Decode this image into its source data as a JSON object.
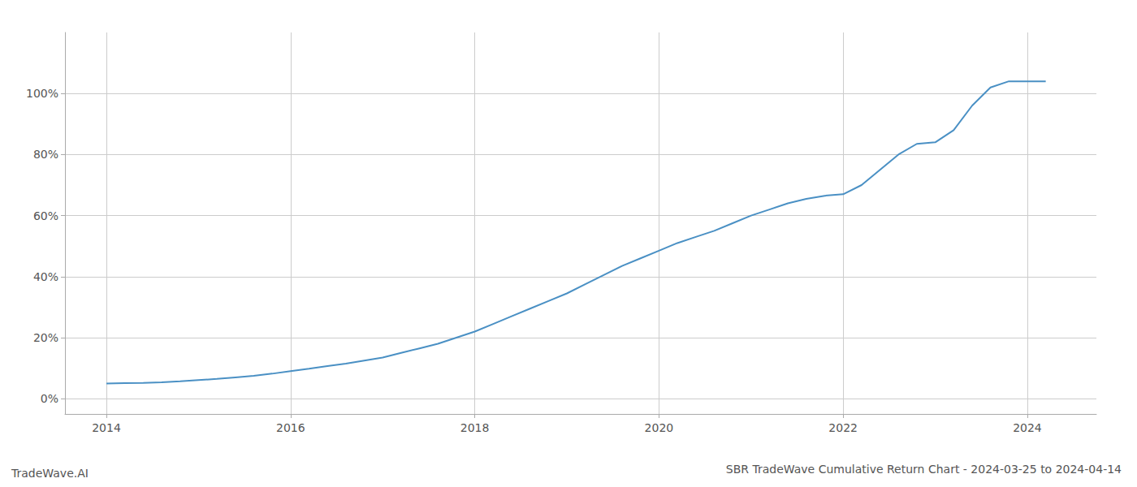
{
  "chart_data": {
    "type": "line",
    "title": "SBR TradeWave Cumulative Return Chart - 2024-03-25 to 2024-04-14",
    "annotations": [
      "TradeWave.AI"
    ],
    "color": "#4a90c4",
    "grid": true,
    "x": [
      2014.0,
      2014.2,
      2014.4,
      2014.6,
      2014.8,
      2015.0,
      2015.2,
      2015.4,
      2015.6,
      2015.8,
      2016.0,
      2016.2,
      2016.4,
      2016.6,
      2016.8,
      2017.0,
      2017.2,
      2017.4,
      2017.6,
      2017.8,
      2018.0,
      2018.2,
      2018.4,
      2018.6,
      2018.8,
      2019.0,
      2019.2,
      2019.4,
      2019.6,
      2019.8,
      2020.0,
      2020.2,
      2020.4,
      2020.6,
      2020.8,
      2021.0,
      2021.2,
      2021.4,
      2021.6,
      2021.8,
      2022.0,
      2022.2,
      2022.4,
      2022.6,
      2022.8,
      2023.0,
      2023.2,
      2023.4,
      2023.6,
      2023.8,
      2024.0,
      2024.2
    ],
    "values": [
      5.0,
      5.1,
      5.2,
      5.4,
      5.7,
      6.1,
      6.5,
      7.0,
      7.5,
      8.2,
      9.0,
      9.8,
      10.7,
      11.5,
      12.5,
      13.5,
      15.0,
      16.5,
      18.0,
      20.0,
      22.0,
      24.5,
      27.0,
      29.5,
      32.0,
      34.5,
      37.5,
      40.5,
      43.5,
      46.0,
      48.5,
      51.0,
      53.0,
      55.0,
      57.5,
      60.0,
      62.0,
      64.0,
      65.5,
      66.5,
      67.0,
      70.0,
      75.0,
      80.0,
      83.5,
      84.0,
      88.0,
      96.0,
      102.0,
      104.0,
      104.0,
      104.0
    ],
    "xlim": [
      2013.55,
      2024.75
    ],
    "ylim": [
      -5,
      120
    ],
    "xticks": [
      2014,
      2016,
      2018,
      2020,
      2022,
      2024
    ],
    "yticks": [
      {
        "value": 0,
        "label": "0%"
      },
      {
        "value": 20,
        "label": "20%"
      },
      {
        "value": 40,
        "label": "40%"
      },
      {
        "value": 60,
        "label": "60%"
      },
      {
        "value": 80,
        "label": "80%"
      },
      {
        "value": 100,
        "label": "100%"
      }
    ]
  }
}
